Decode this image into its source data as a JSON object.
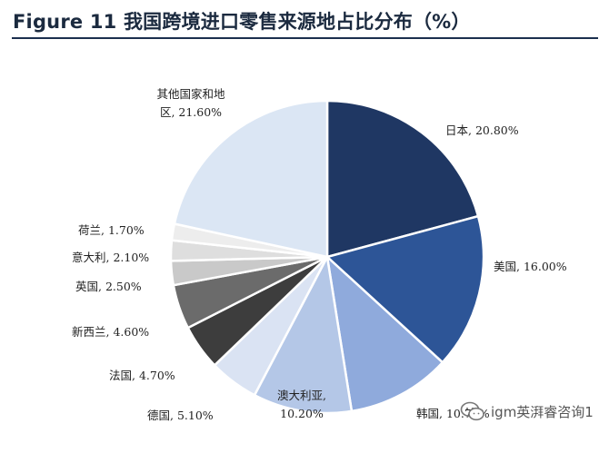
{
  "figure": {
    "title": "Figure 11 我国跨境进口零售来源地占比分布（%）"
  },
  "watermark": {
    "text": "igm英湃睿咨询1",
    "icon": "wechat-icon"
  },
  "chart_data": {
    "type": "pie",
    "title": "Figure 11 我国跨境进口零售来源地占比分布（%）",
    "slices": [
      {
        "label": [
          "日本, 20.80%"
        ],
        "value": 20.8,
        "color": "#1f3763"
      },
      {
        "label": [
          "美国, 16.00%"
        ],
        "value": 16.0,
        "color": "#2d5597"
      },
      {
        "label": [
          "韩国, 10.70%"
        ],
        "value": 10.7,
        "color": "#8faadc"
      },
      {
        "label": [
          "澳大利亚,",
          "10.20%"
        ],
        "value": 10.2,
        "color": "#b4c7e7"
      },
      {
        "label": [
          "德国, 5.10%"
        ],
        "value": 5.1,
        "color": "#dae3f3"
      },
      {
        "label": [
          "法国, 4.70%"
        ],
        "value": 4.7,
        "color": "#3d3d3d"
      },
      {
        "label": [
          "新西兰, 4.60%"
        ],
        "value": 4.6,
        "color": "#6b6b6b"
      },
      {
        "label": [
          "英国, 2.50%"
        ],
        "value": 2.5,
        "color": "#c9c9c9"
      },
      {
        "label": [
          "意大利, 2.10%"
        ],
        "value": 2.1,
        "color": "#dedede"
      },
      {
        "label": [
          "荷兰, 1.70%"
        ],
        "value": 1.7,
        "color": "#ededed"
      },
      {
        "label": [
          "其他国家和地",
          "区, 21.60%"
        ],
        "value": 21.6,
        "color": "#dbe6f4"
      }
    ]
  }
}
